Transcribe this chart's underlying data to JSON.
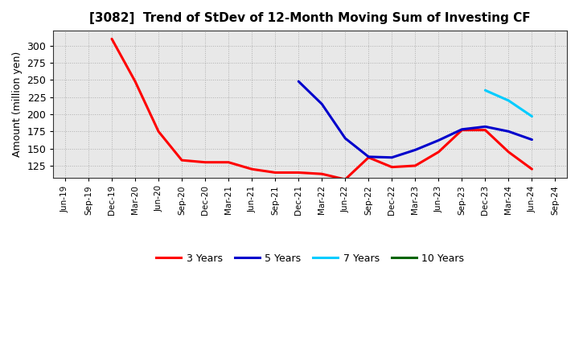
{
  "title": "[3082]  Trend of StDev of 12-Month Moving Sum of Investing CF",
  "ylabel": "Amount (million yen)",
  "background_color": "#ffffff",
  "plot_bg_color": "#e8e8e8",
  "grid_color": "#999999",
  "ylim": [
    107,
    322
  ],
  "yticks": [
    125,
    150,
    175,
    200,
    225,
    250,
    275,
    300
  ],
  "series": {
    "3 Years": {
      "color": "#ff0000",
      "values": [
        null,
        null,
        310,
        248,
        175,
        133,
        130,
        130,
        120,
        115,
        115,
        113,
        105,
        137,
        123,
        125,
        145,
        177,
        177,
        145,
        120,
        null
      ]
    },
    "5 Years": {
      "color": "#0000cc",
      "values": [
        null,
        null,
        null,
        null,
        null,
        null,
        null,
        null,
        null,
        null,
        248,
        215,
        165,
        138,
        137,
        148,
        162,
        178,
        182,
        175,
        163,
        null
      ]
    },
    "7 Years": {
      "color": "#00ccff",
      "values": [
        null,
        null,
        null,
        null,
        null,
        null,
        null,
        null,
        null,
        null,
        null,
        null,
        null,
        null,
        null,
        null,
        null,
        null,
        235,
        220,
        197,
        null
      ]
    },
    "10 Years": {
      "color": "#006400",
      "values": [
        null,
        null,
        null,
        null,
        null,
        null,
        null,
        null,
        null,
        null,
        null,
        null,
        null,
        null,
        null,
        null,
        null,
        null,
        null,
        null,
        null,
        null
      ]
    }
  },
  "x_tick_labels": [
    "Jun-19",
    "Sep-19",
    "Dec-19",
    "Mar-20",
    "Jun-20",
    "Sep-20",
    "Dec-20",
    "Mar-21",
    "Jun-21",
    "Sep-21",
    "Dec-21",
    "Mar-22",
    "Jun-22",
    "Sep-22",
    "Dec-22",
    "Mar-23",
    "Jun-23",
    "Sep-23",
    "Dec-23",
    "Mar-24",
    "Jun-24",
    "Sep-24"
  ]
}
